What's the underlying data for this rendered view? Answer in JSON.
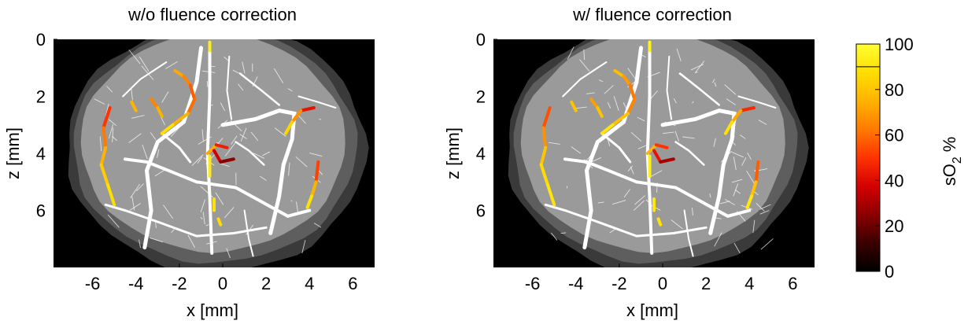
{
  "colors": {
    "background": "#000000",
    "outer_band": "#3a3a3a",
    "mid_band": "#5e5e5e",
    "brain": "#9a9a9a",
    "vessels": "#ffffff",
    "colormap": [
      "#000000",
      "#3a0000",
      "#8b0000",
      "#d40000",
      "#ff3300",
      "#ff7a00",
      "#ffb300",
      "#ffde00",
      "#ffff33"
    ]
  },
  "chart_data": [
    {
      "type": "heatmap",
      "title": "w/o fluence correction",
      "xlabel": "x [mm]",
      "ylabel": "z [mm]",
      "xlim": [
        -7.8,
        7.0
      ],
      "ylim": [
        0,
        8.0
      ],
      "y_reversed": true,
      "xticks": [
        "-6",
        "-4",
        "-2",
        "0",
        "2",
        "4",
        "6"
      ],
      "xtick_values": [
        -6,
        -4,
        -2,
        0,
        2,
        4,
        6
      ],
      "yticks": [
        "0",
        "2",
        "4",
        "6"
      ],
      "ytick_values": [
        0,
        2,
        4,
        6
      ],
      "highlighted_vessels": [
        {
          "points": [
            [
              -2.2,
              1.1
            ],
            [
              -1.8,
              1.3
            ],
            [
              -1.5,
              1.6
            ],
            [
              -1.3,
              2.1
            ],
            [
              -1.6,
              2.6
            ],
            [
              -2.3,
              3.0
            ],
            [
              -2.8,
              3.3
            ]
          ],
          "sO2": [
            75,
            70,
            60,
            55,
            65,
            85,
            90
          ]
        },
        {
          "points": [
            [
              -0.6,
              0.1
            ],
            [
              -0.6,
              0.4
            ]
          ],
          "sO2": [
            95,
            92
          ]
        },
        {
          "points": [
            [
              -3.3,
              2.1
            ],
            [
              -3.0,
              2.4
            ],
            [
              -2.8,
              2.7
            ]
          ],
          "sO2": [
            60,
            70,
            80
          ]
        },
        {
          "points": [
            [
              -4.2,
              2.2
            ],
            [
              -4.0,
              2.5
            ]
          ],
          "sO2": [
            70,
            80
          ]
        },
        {
          "points": [
            [
              -5.2,
              2.4
            ],
            [
              -5.5,
              3.1
            ],
            [
              -5.4,
              3.8
            ],
            [
              -5.6,
              4.4
            ],
            [
              -5.3,
              5.1
            ],
            [
              -5.0,
              5.8
            ]
          ],
          "sO2": [
            45,
            55,
            70,
            80,
            85,
            90
          ]
        },
        {
          "points": [
            [
              4.2,
              2.4
            ],
            [
              3.6,
              2.5
            ],
            [
              3.2,
              2.9
            ],
            [
              2.9,
              3.3
            ]
          ],
          "sO2": [
            30,
            55,
            80,
            90
          ]
        },
        {
          "points": [
            [
              -0.7,
              4.0
            ],
            [
              -0.3,
              3.7
            ],
            [
              0.2,
              3.8
            ]
          ],
          "sO2": [
            90,
            55,
            35
          ]
        },
        {
          "points": [
            [
              -0.4,
              3.9
            ],
            [
              -0.1,
              4.3
            ],
            [
              0.5,
              4.2
            ]
          ],
          "sO2": [
            45,
            30,
            20
          ]
        },
        {
          "points": [
            [
              -0.6,
              4.1
            ],
            [
              -0.6,
              4.8
            ]
          ],
          "sO2": [
            90,
            95
          ]
        },
        {
          "points": [
            [
              4.4,
              4.3
            ],
            [
              4.3,
              5.0
            ],
            [
              4.1,
              5.5
            ],
            [
              3.9,
              5.9
            ]
          ],
          "sO2": [
            40,
            65,
            85,
            92
          ]
        },
        {
          "points": [
            [
              -0.4,
              5.6
            ],
            [
              -0.4,
              6.0
            ]
          ],
          "sO2": [
            90,
            88
          ]
        },
        {
          "points": [
            [
              -0.2,
              6.3
            ],
            [
              -0.1,
              6.5
            ]
          ],
          "sO2": [
            85,
            88
          ]
        }
      ]
    },
    {
      "type": "heatmap",
      "title": "w/ fluence correction",
      "xlabel": "x [mm]",
      "ylabel": "z [mm]",
      "xlim": [
        -7.8,
        7.0
      ],
      "ylim": [
        0,
        8.0
      ],
      "y_reversed": true,
      "xticks": [
        "-6",
        "-4",
        "-2",
        "0",
        "2",
        "4",
        "6"
      ],
      "xtick_values": [
        -6,
        -4,
        -2,
        0,
        2,
        4,
        6
      ],
      "yticks": [
        "0",
        "2",
        "4",
        "6"
      ],
      "ytick_values": [
        0,
        2,
        4,
        6
      ],
      "highlighted_vessels": [
        {
          "points": [
            [
              -2.2,
              1.1
            ],
            [
              -1.8,
              1.3
            ],
            [
              -1.5,
              1.6
            ],
            [
              -1.3,
              2.1
            ],
            [
              -1.6,
              2.6
            ],
            [
              -2.3,
              3.0
            ],
            [
              -2.8,
              3.3
            ]
          ],
          "sO2": [
            80,
            75,
            65,
            60,
            70,
            88,
            92
          ]
        },
        {
          "points": [
            [
              -0.6,
              0.1
            ],
            [
              -0.6,
              0.4
            ]
          ],
          "sO2": [
            96,
            94
          ]
        },
        {
          "points": [
            [
              -3.3,
              2.1
            ],
            [
              -3.0,
              2.4
            ],
            [
              -2.8,
              2.7
            ]
          ],
          "sO2": [
            65,
            75,
            85
          ]
        },
        {
          "points": [
            [
              -4.2,
              2.2
            ],
            [
              -4.0,
              2.5
            ]
          ],
          "sO2": [
            75,
            85
          ]
        },
        {
          "points": [
            [
              -5.2,
              2.4
            ],
            [
              -5.5,
              3.1
            ],
            [
              -5.4,
              3.8
            ],
            [
              -5.6,
              4.4
            ],
            [
              -5.3,
              5.1
            ],
            [
              -5.0,
              5.8
            ]
          ],
          "sO2": [
            50,
            60,
            75,
            85,
            88,
            92
          ]
        },
        {
          "points": [
            [
              4.2,
              2.4
            ],
            [
              3.6,
              2.5
            ],
            [
              3.2,
              2.9
            ],
            [
              2.9,
              3.3
            ]
          ],
          "sO2": [
            35,
            60,
            85,
            92
          ]
        },
        {
          "points": [
            [
              -0.7,
              4.0
            ],
            [
              -0.3,
              3.7
            ],
            [
              0.2,
              3.8
            ]
          ],
          "sO2": [
            92,
            60,
            40
          ]
        },
        {
          "points": [
            [
              -0.4,
              3.9
            ],
            [
              -0.1,
              4.3
            ],
            [
              0.5,
              4.2
            ]
          ],
          "sO2": [
            50,
            35,
            25
          ]
        },
        {
          "points": [
            [
              -0.6,
              4.1
            ],
            [
              -0.6,
              4.8
            ]
          ],
          "sO2": [
            92,
            96
          ]
        },
        {
          "points": [
            [
              4.4,
              4.3
            ],
            [
              4.3,
              5.0
            ],
            [
              4.1,
              5.5
            ],
            [
              3.9,
              5.9
            ]
          ],
          "sO2": [
            45,
            70,
            88,
            94
          ]
        },
        {
          "points": [
            [
              -0.4,
              5.6
            ],
            [
              -0.4,
              6.0
            ]
          ],
          "sO2": [
            92,
            90
          ]
        },
        {
          "points": [
            [
              -0.2,
              6.3
            ],
            [
              -0.1,
              6.5
            ]
          ],
          "sO2": [
            88,
            90
          ]
        }
      ]
    }
  ],
  "colorbar": {
    "label_main": "sO",
    "label_sub": "2",
    "label_unit": "%",
    "range": [
      0,
      100
    ],
    "ticks": [
      "0",
      "20",
      "40",
      "60",
      "80",
      "100"
    ],
    "tick_values": [
      0,
      20,
      40,
      60,
      80,
      100
    ],
    "marker_value": 90
  }
}
